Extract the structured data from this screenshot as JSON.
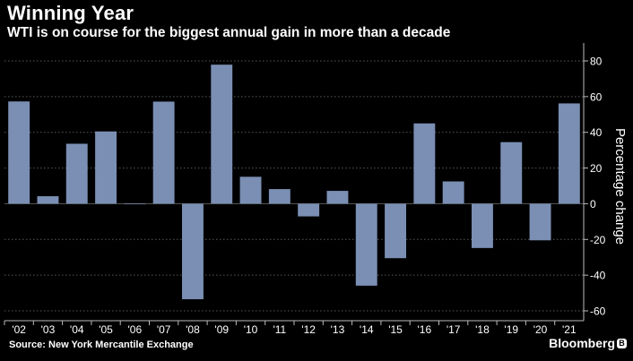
{
  "header": {
    "title": "Winning Year",
    "subtitle": "WTI is on course for the biggest annual gain in more than a decade"
  },
  "footer": {
    "source": "Source: New York Mercantile Exchange",
    "brand": "Bloomberg"
  },
  "colors": {
    "background": "#000000",
    "bar": "#7b8fb4",
    "grid": "#5a5a5a",
    "text": "#ffffff"
  },
  "chart_data": {
    "type": "bar",
    "title": "Winning Year",
    "subtitle": "WTI is on course for the biggest annual gain in more than a decade",
    "xlabel": "",
    "ylabel": "Percentage change",
    "ylim": [
      -60,
      80
    ],
    "yticks": [
      -60,
      -40,
      -20,
      0,
      20,
      40,
      60,
      80
    ],
    "grid": true,
    "y_axis_position": "right",
    "categories": [
      "'02",
      "'03",
      "'04",
      "'05",
      "'06",
      "'07",
      "'08",
      "'09",
      "'10",
      "'11",
      "'12",
      "'13",
      "'14",
      "'15",
      "'16",
      "'17",
      "'18",
      "'19",
      "'20",
      "'21"
    ],
    "values": [
      57.3,
      4.2,
      33.6,
      40.5,
      0.0,
      57.2,
      -53.5,
      77.9,
      15.1,
      8.2,
      -7.1,
      7.2,
      -45.9,
      -30.5,
      45.0,
      12.5,
      -24.8,
      34.5,
      -20.5,
      56.2
    ]
  }
}
